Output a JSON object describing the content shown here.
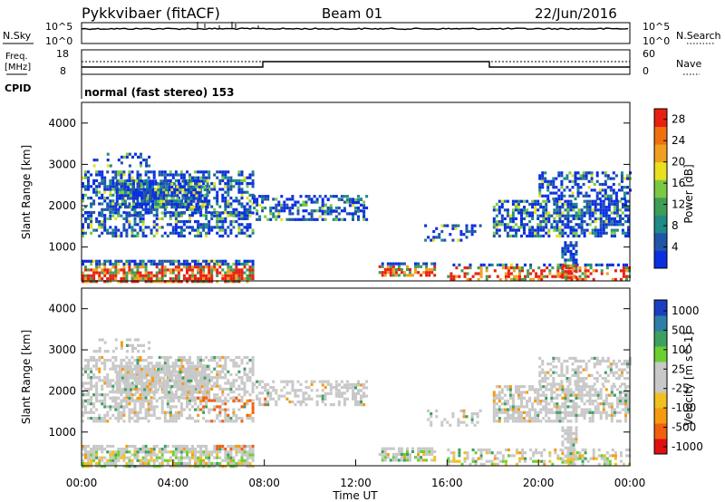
{
  "header": {
    "station": "Pykkvibaer (fitACF)",
    "beam": "Beam 01",
    "date": "22/Jun/2016"
  },
  "status_panels": {
    "nsky_label": "N.Sky",
    "nsky_ticks": [
      "10^5",
      "10^0"
    ],
    "nsearch_label": "N.Search",
    "nsearch_ticks": [
      "10^5",
      "10^0"
    ],
    "freq_label_line1": "Freq.",
    "freq_label_line2": "[MHz]",
    "freq_ticks": [
      "18",
      "8"
    ],
    "nave_label": "Nave",
    "nave_ticks": [
      "60",
      "0"
    ],
    "cpid_label": "CPID",
    "cpid_text": "normal (fast stereo) 153"
  },
  "colors": {
    "power_scale": [
      "#0a2fe0",
      "#2155a8",
      "#1f8a86",
      "#3e9e55",
      "#7ac943",
      "#e8e020",
      "#f0a020",
      "#f07010",
      "#e82010"
    ],
    "velocity_scale": [
      "#e01010",
      "#f06010",
      "#f59a10",
      "#f0c020",
      "#c8c8c8",
      "#c8c8c8",
      "#6ad030",
      "#3da060",
      "#2e7ea8",
      "#1a3fc0"
    ]
  },
  "chart_data": [
    {
      "type": "heatmap",
      "id": "power",
      "xlabel": "",
      "ylabel": "Slant Range [km]",
      "ylim": [
        180,
        4500
      ],
      "yticks": [
        "1000",
        "2000",
        "3000",
        "4000"
      ],
      "colorbar_label": "Power [dB]",
      "colorbar_ticks": [
        "4",
        "8",
        "12",
        "16",
        "20",
        "24",
        "28"
      ],
      "colorbar_range": [
        0,
        30
      ]
    },
    {
      "type": "heatmap",
      "id": "velocity",
      "xlabel": "Time UT",
      "ylabel": "Slant Range [km]",
      "ylim": [
        180,
        4500
      ],
      "xticks": [
        "00:00",
        "04:00",
        "08:00",
        "12:00",
        "16:00",
        "20:00",
        "00:00"
      ],
      "yticks": [
        "1000",
        "2000",
        "3000",
        "4000"
      ],
      "colorbar_label": "Velocity [m s^-1]",
      "colorbar_ticks": [
        "1000",
        "500",
        "100",
        "25",
        "-25",
        "-100",
        "-500",
        "-1000"
      ]
    }
  ]
}
